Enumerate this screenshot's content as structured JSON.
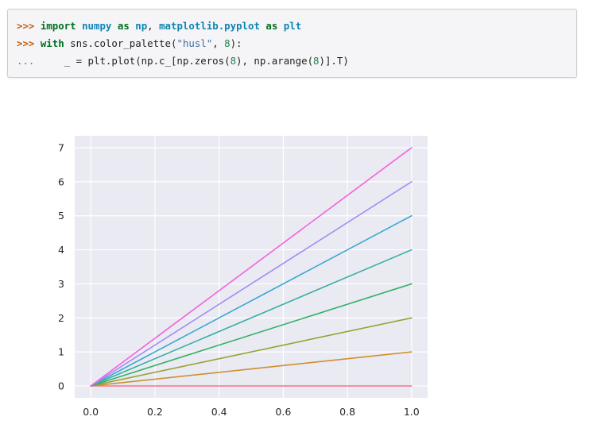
{
  "code": {
    "lines": [
      {
        "tokens": [
          {
            "t": ">>> ",
            "c": "prompt"
          },
          {
            "t": "import",
            "c": "kw"
          },
          {
            "t": " ",
            "c": "plain"
          },
          {
            "t": "numpy",
            "c": "mod"
          },
          {
            "t": " ",
            "c": "plain"
          },
          {
            "t": "as",
            "c": "kw"
          },
          {
            "t": " ",
            "c": "plain"
          },
          {
            "t": "np",
            "c": "mod"
          },
          {
            "t": ", ",
            "c": "plain"
          },
          {
            "t": "matplotlib.pyplot",
            "c": "mod"
          },
          {
            "t": " ",
            "c": "plain"
          },
          {
            "t": "as",
            "c": "kw"
          },
          {
            "t": " ",
            "c": "plain"
          },
          {
            "t": "plt",
            "c": "mod"
          }
        ]
      },
      {
        "tokens": [
          {
            "t": ">>> ",
            "c": "prompt"
          },
          {
            "t": "with",
            "c": "kw"
          },
          {
            "t": " sns.color_palette(",
            "c": "plain"
          },
          {
            "t": "\"husl\"",
            "c": "str"
          },
          {
            "t": ", ",
            "c": "plain"
          },
          {
            "t": "8",
            "c": "num"
          },
          {
            "t": "):",
            "c": "plain"
          }
        ]
      },
      {
        "tokens": [
          {
            "t": "...",
            "c": "prompt-cont"
          },
          {
            "t": "     _ = plt.plot(np.c_[np.zeros(",
            "c": "plain"
          },
          {
            "t": "8",
            "c": "num"
          },
          {
            "t": "), np.arange(",
            "c": "plain"
          },
          {
            "t": "8",
            "c": "num"
          },
          {
            "t": ")].T)",
            "c": "plain"
          }
        ]
      }
    ]
  },
  "chart_data": {
    "type": "line",
    "x": [
      0,
      1
    ],
    "xlim": [
      -0.05,
      1.05
    ],
    "ylim": [
      -0.35,
      7.35
    ],
    "xticks": [
      0.0,
      0.2,
      0.4,
      0.6,
      0.8,
      1.0
    ],
    "xtick_labels": [
      "0.0",
      "0.2",
      "0.4",
      "0.6",
      "0.8",
      "1.0"
    ],
    "yticks": [
      0,
      1,
      2,
      3,
      4,
      5,
      6,
      7
    ],
    "ytick_labels": [
      "0",
      "1",
      "2",
      "3",
      "4",
      "5",
      "6",
      "7"
    ],
    "grid": true,
    "background": "#eaeaf2",
    "series": [
      {
        "values": [
          0,
          0
        ],
        "color": "#f77189"
      },
      {
        "values": [
          0,
          1
        ],
        "color": "#ce8f31"
      },
      {
        "values": [
          0,
          2
        ],
        "color": "#96a331"
      },
      {
        "values": [
          0,
          3
        ],
        "color": "#32b166"
      },
      {
        "values": [
          0,
          4
        ],
        "color": "#36ada4"
      },
      {
        "values": [
          0,
          5
        ],
        "color": "#39a7d0"
      },
      {
        "values": [
          0,
          6
        ],
        "color": "#a48cf4"
      },
      {
        "values": [
          0,
          7
        ],
        "color": "#f561dd"
      }
    ]
  }
}
